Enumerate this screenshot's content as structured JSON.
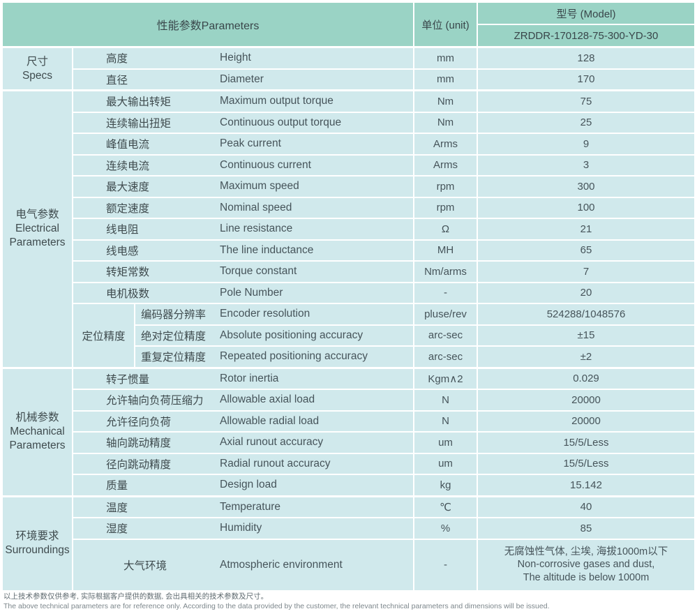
{
  "colors": {
    "header_bg": "#9ad3c5",
    "cell_bg": "#d0e9ec",
    "grid": "#ffffff",
    "text": "#3f4b4e"
  },
  "header": {
    "parameters_label": "性能参数Parameters",
    "unit_label": "单位 (unit)",
    "model_label": "型号 (Model)",
    "model_value": "ZRDDR-170128-75-300-YD-30"
  },
  "sections": [
    {
      "group": [
        "尺寸",
        "Specs"
      ],
      "rows": [
        {
          "cn": "高度",
          "en": "Height",
          "unit": "mm",
          "value": "128"
        },
        {
          "cn": "直径",
          "en": "Diameter",
          "unit": "mm",
          "value": "170"
        }
      ]
    },
    {
      "group": [
        "电气参数",
        "Electrical",
        "Parameters"
      ],
      "rows": [
        {
          "cn": "最大输出转矩",
          "en": "Maximum output torque",
          "unit": "Nm",
          "value": "75"
        },
        {
          "cn": "连续输出扭矩",
          "en": "Continuous output torque",
          "unit": "Nm",
          "value": "25"
        },
        {
          "cn": "峰值电流",
          "en": "Peak current",
          "unit": "Arms",
          "value": "9"
        },
        {
          "cn": "连续电流",
          "en": "Continuous current",
          "unit": "Arms",
          "value": "3"
        },
        {
          "cn": "最大速度",
          "en": "Maximum speed",
          "unit": "rpm",
          "value": "300"
        },
        {
          "cn": "额定速度",
          "en": "Nominal speed",
          "unit": "rpm",
          "value": "100"
        },
        {
          "cn": "线电阻",
          "en": "Line resistance",
          "unit": "Ω",
          "value": "21"
        },
        {
          "cn": "线电感",
          "en": "The line inductance",
          "unit": "MH",
          "value": "65"
        },
        {
          "cn": "转矩常数",
          "en": "Torque constant",
          "unit": "Nm/arms",
          "value": "7"
        },
        {
          "cn": "电机极数",
          "en": "Pole Number",
          "unit": "-",
          "value": "20"
        }
      ],
      "subgroup": {
        "label": "定位精度",
        "rows": [
          {
            "cn": "编码器分辨率",
            "en": "Encoder resolution",
            "unit": "pluse/rev",
            "value": "524288/1048576"
          },
          {
            "cn": "绝对定位精度",
            "en": "Absolute positioning accuracy",
            "unit": "arc-sec",
            "value": "±15"
          },
          {
            "cn": "重复定位精度",
            "en": "Repeated positioning accuracy",
            "unit": "arc-sec",
            "value": "±2"
          }
        ]
      }
    },
    {
      "group": [
        "机械参数",
        "Mechanical",
        "Parameters"
      ],
      "rows": [
        {
          "cn": "转子惯量",
          "en": "Rotor inertia",
          "unit": "Kgm∧2",
          "value": "0.029"
        },
        {
          "cn": "允许轴向负荷压缩力",
          "en": "Allowable axial load",
          "unit": "N",
          "value": "20000"
        },
        {
          "cn": "允许径向负荷",
          "en": "Allowable radial load",
          "unit": "N",
          "value": "20000"
        },
        {
          "cn": "轴向跳动精度",
          "en": "Axial runout accuracy",
          "unit": "um",
          "value": "15/5/Less"
        },
        {
          "cn": "径向跳动精度",
          "en": "Radial runout accuracy",
          "unit": "um",
          "value": "15/5/Less"
        },
        {
          "cn": "质量",
          "en": "Design load",
          "unit": "kg",
          "value": "15.142"
        }
      ]
    },
    {
      "group": [
        "环境要求",
        "Surroundings"
      ],
      "rows": [
        {
          "cn": "温度",
          "en": "Temperature",
          "unit": "℃",
          "value": "40"
        },
        {
          "cn": "湿度",
          "en": "Humidity",
          "unit": "%",
          "value": "85"
        }
      ],
      "wide_row": {
        "cn": "大气环境",
        "en": "Atmospheric environment",
        "unit": "-",
        "value_lines": [
          "无腐蚀性气体, 尘埃, 海拔1000m以下",
          "Non-corrosive gases and dust,",
          "The altitude is below 1000m"
        ]
      }
    }
  ],
  "notes": {
    "cn": "以上技术参数仅供参考, 实际根据客户提供的数据, 会出具相关的技术参数及尺寸。",
    "en": "The above technical parameters are for reference only. According to the data provided by the customer, the relevant technical parameters and dimensions will be issued."
  }
}
